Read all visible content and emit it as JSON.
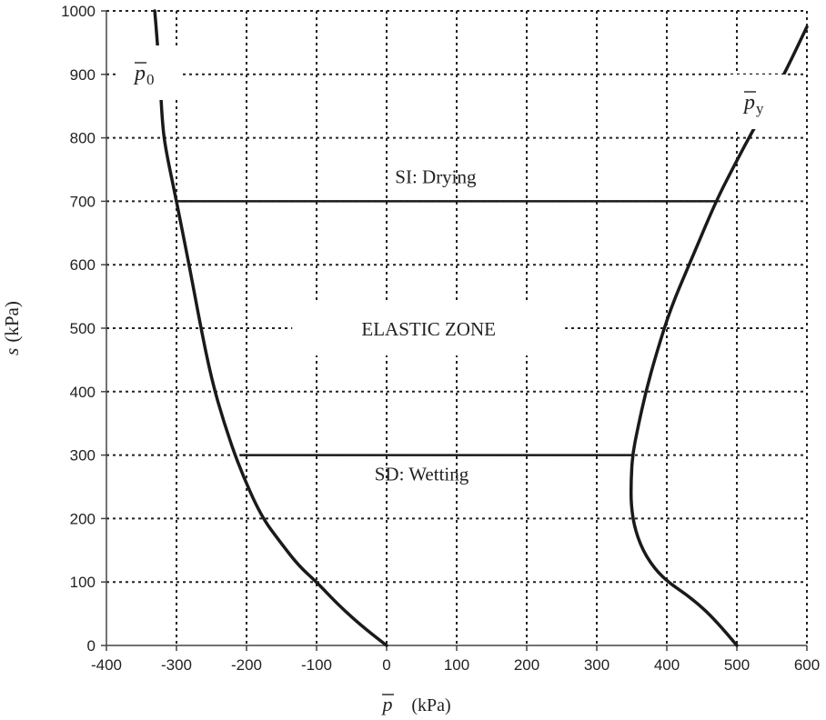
{
  "chart_data": {
    "type": "line",
    "xlabel": {
      "symbol": "p",
      "unit": "(kPa)"
    },
    "ylabel": {
      "symbol": "s",
      "unit": "(kPa)"
    },
    "xlim": [
      -400,
      600
    ],
    "ylim": [
      0,
      1000
    ],
    "x_ticks": [
      "-400",
      "-300",
      "-200",
      "-100",
      "0",
      "100",
      "200",
      "300",
      "400",
      "500",
      "600"
    ],
    "y_ticks": [
      "0",
      "100",
      "200",
      "300",
      "400",
      "500",
      "600",
      "700",
      "800",
      "900",
      "1000"
    ],
    "grid": true,
    "series": [
      {
        "name_symbol": "p",
        "name_subscript": "0",
        "points": [
          [
            0,
            0
          ],
          [
            -30,
            25
          ],
          [
            -70,
            65
          ],
          [
            -100,
            100
          ],
          [
            -125,
            125
          ],
          [
            -150,
            160
          ],
          [
            -180,
            205
          ],
          [
            -210,
            280
          ],
          [
            -232,
            350
          ],
          [
            -250,
            420
          ],
          [
            -265,
            500
          ],
          [
            -282,
            600
          ],
          [
            -300,
            700
          ],
          [
            -315,
            780
          ],
          [
            -320,
            820
          ],
          [
            -324,
            900
          ],
          [
            -328,
            960
          ],
          [
            -331,
            1000
          ]
        ]
      },
      {
        "name_symbol": "p",
        "name_subscript": "y",
        "points": [
          [
            500,
            0
          ],
          [
            470,
            40
          ],
          [
            435,
            75
          ],
          [
            395,
            105
          ],
          [
            370,
            140
          ],
          [
            355,
            180
          ],
          [
            349,
            220
          ],
          [
            349,
            260
          ],
          [
            351,
            300
          ],
          [
            358,
            340
          ],
          [
            370,
            400
          ],
          [
            385,
            460
          ],
          [
            405,
            530
          ],
          [
            432,
            600
          ],
          [
            470,
            700
          ],
          [
            498,
            760
          ],
          [
            522,
            810
          ],
          [
            548,
            860
          ],
          [
            572,
            910
          ],
          [
            600,
            975
          ]
        ]
      }
    ],
    "horizontal_lines": [
      {
        "label": "SI: Drying",
        "y": 700,
        "x_from": -300,
        "x_to": 470
      },
      {
        "label": "SD: Wetting",
        "y": 300,
        "x_from": -210,
        "x_to": 351
      }
    ],
    "annotations": [
      {
        "text": "ELASTIC ZONE",
        "x": 60,
        "y": 500
      }
    ]
  }
}
